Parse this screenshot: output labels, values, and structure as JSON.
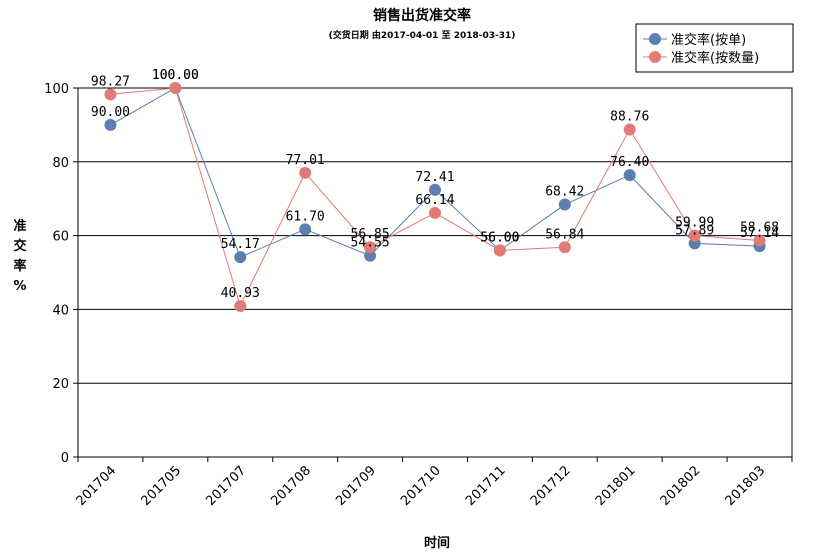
{
  "chart_data": {
    "type": "line",
    "title": "销售出货准交率",
    "subtitle": "(交货日期 由2017-04-01 至 2018-03-31)",
    "xlabel": "时间",
    "ylabel_lines": [
      "准",
      "交",
      "率",
      "%"
    ],
    "ylim": [
      0,
      100
    ],
    "yticks": [
      0,
      20,
      40,
      60,
      80,
      100
    ],
    "yticklabels": [
      "0",
      "20",
      "40",
      "60",
      "80",
      "100"
    ],
    "grid": true,
    "legend_position": "top-right",
    "categories": [
      "201704",
      "201705",
      "201707",
      "201708",
      "201709",
      "201710",
      "201711",
      "201712",
      "201801",
      "201802",
      "201803"
    ],
    "series": [
      {
        "name": "准交率(按单)",
        "color": "#5B7FAE",
        "values": [
          90.0,
          100.0,
          54.17,
          61.7,
          54.55,
          72.41,
          56.0,
          68.42,
          76.4,
          57.89,
          57.14
        ],
        "labels": [
          "90.00",
          "100.00",
          "54.17",
          "61.70",
          "54.55",
          "72.41",
          "56.00",
          "68.42",
          "76.40",
          "57.89",
          "57.14"
        ]
      },
      {
        "name": "准交率(按数量)",
        "color": "#E07B78",
        "values": [
          98.27,
          100.0,
          40.93,
          77.01,
          56.85,
          66.14,
          56.0,
          56.84,
          88.76,
          59.99,
          58.68
        ],
        "labels": [
          "98.27",
          "100.00",
          "40.93",
          "77.01",
          "56.85",
          "66.14",
          "56.00",
          "56.84",
          "88.76",
          "59.99",
          "58.68"
        ]
      }
    ]
  }
}
